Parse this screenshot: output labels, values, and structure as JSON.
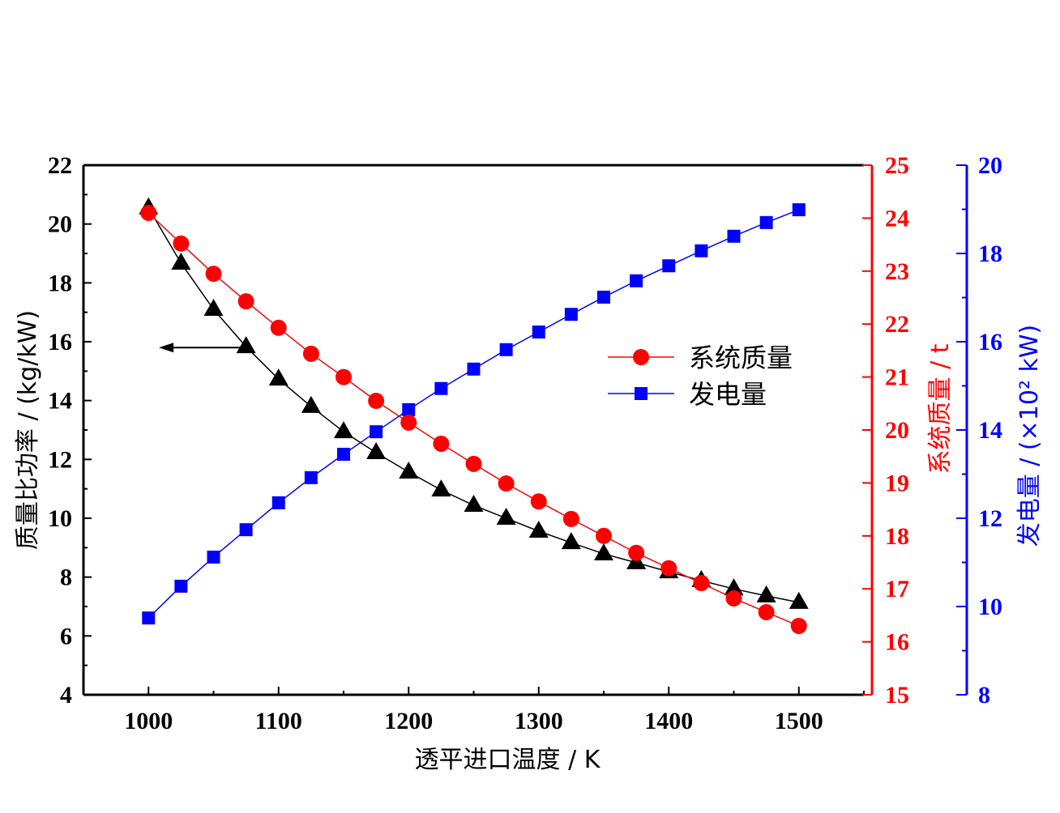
{
  "chart_data": {
    "type": "line",
    "x": [
      1000,
      1025,
      1050,
      1075,
      1100,
      1125,
      1150,
      1175,
      1200,
      1225,
      1250,
      1275,
      1300,
      1325,
      1350,
      1375,
      1400,
      1425,
      1450,
      1475,
      1500
    ],
    "xlabel": "透平进口温度 / K",
    "xlim": [
      950,
      1550
    ],
    "xticks": [
      1000,
      1100,
      1200,
      1300,
      1400,
      1500
    ],
    "axes": {
      "left": {
        "label": "质量比功率  / (kg/kW)",
        "range": [
          4,
          22
        ],
        "ticks": [
          4,
          6,
          8,
          10,
          12,
          14,
          16,
          18,
          20,
          22
        ],
        "color": "#000000"
      },
      "right1": {
        "label": "系统质量 / t",
        "range": [
          15,
          25
        ],
        "ticks": [
          15,
          16,
          17,
          18,
          19,
          20,
          21,
          22,
          23,
          24,
          25
        ],
        "color": "#ff0000"
      },
      "right2": {
        "label": "发电量 / (×10² kW)",
        "range": [
          8,
          20
        ],
        "ticks": [
          8,
          10,
          12,
          14,
          16,
          18,
          20
        ],
        "color": "#0000ff"
      }
    },
    "series": [
      {
        "name": "质量比功率",
        "axis": "left",
        "marker": "triangle",
        "color": "#000000",
        "values": [
          20.55,
          18.67,
          17.1,
          15.83,
          14.73,
          13.8,
          12.94,
          12.23,
          11.57,
          10.96,
          10.44,
          10.0,
          9.56,
          9.17,
          8.79,
          8.49,
          8.18,
          7.88,
          7.6,
          7.36,
          7.14
        ]
      },
      {
        "name": "系统质量",
        "axis": "right1",
        "marker": "circle",
        "color": "#ff0000",
        "values": [
          24.1,
          23.52,
          22.95,
          22.43,
          21.93,
          21.44,
          21.0,
          20.55,
          20.14,
          19.74,
          19.36,
          18.99,
          18.65,
          18.32,
          18.0,
          17.68,
          17.39,
          17.11,
          16.82,
          16.56,
          16.3
        ]
      },
      {
        "name": "发电量",
        "axis": "right2",
        "marker": "square",
        "color": "#0000ff",
        "values": [
          9.74,
          10.46,
          11.12,
          11.74,
          12.35,
          12.92,
          13.45,
          13.96,
          14.46,
          14.94,
          15.38,
          15.82,
          16.22,
          16.62,
          17.01,
          17.38,
          17.72,
          18.06,
          18.39,
          18.7,
          18.99
        ]
      }
    ],
    "legend": {
      "position": "center-right",
      "entries": [
        "系统质量",
        "发电量"
      ]
    },
    "annotation": {
      "type": "arrow-left",
      "points_to": "left axis",
      "at_value": 15.8,
      "from_x": 1075,
      "to_x": 1008
    }
  }
}
